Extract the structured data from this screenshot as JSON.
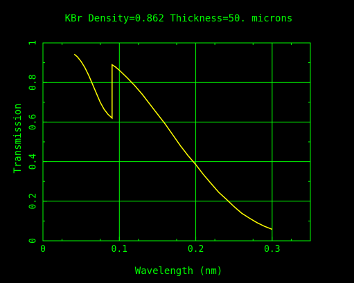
{
  "colors": {
    "background": "#000000",
    "frame": "#00ff00",
    "text": "#00ff00",
    "curve": "#ffff00"
  },
  "chart_data": {
    "type": "line",
    "title": "KBr Density=0.862 Thickness=50. microns",
    "xlabel": "Wavelength (nm)",
    "ylabel": "Transmission",
    "xlim": [
      0,
      0.35
    ],
    "ylim": [
      0,
      1
    ],
    "x_ticks": [
      "0",
      "0.1",
      "0.2",
      "0.3"
    ],
    "y_ticks": [
      "0",
      "0.2",
      "0.4",
      "0.6",
      "0.8",
      "1"
    ],
    "grid": true,
    "series": [
      {
        "x": [
          0.041,
          0.045,
          0.05,
          0.055,
          0.06,
          0.065,
          0.07,
          0.075,
          0.08,
          0.085,
          0.0905,
          0.0905,
          0.095,
          0.1,
          0.11,
          0.12,
          0.13,
          0.14,
          0.15,
          0.16,
          0.17,
          0.18,
          0.19,
          0.2,
          0.21,
          0.22,
          0.23,
          0.24,
          0.25,
          0.26,
          0.27,
          0.28,
          0.29,
          0.3
        ],
        "y": [
          0.943,
          0.93,
          0.906,
          0.874,
          0.835,
          0.79,
          0.745,
          0.7,
          0.665,
          0.64,
          0.62,
          0.89,
          0.878,
          0.862,
          0.825,
          0.785,
          0.74,
          0.69,
          0.64,
          0.59,
          0.535,
          0.48,
          0.43,
          0.385,
          0.335,
          0.29,
          0.245,
          0.21,
          0.173,
          0.14,
          0.115,
          0.092,
          0.073,
          0.058
        ]
      }
    ]
  }
}
